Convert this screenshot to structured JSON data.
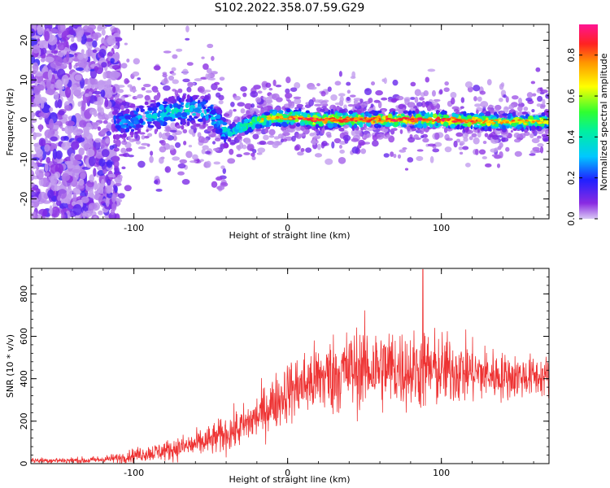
{
  "title": "S102.2022.358.07.59.G29",
  "colors": {
    "snr_line": "#ee3333",
    "axis": "#000000"
  },
  "chart_data": [
    {
      "type": "heatmap",
      "name": "spectrogram",
      "xlabel": "Height of straight line (km)",
      "ylabel": "Frequency (Hz)",
      "xlim": [
        -167,
        170
      ],
      "ylim": [
        -25,
        24
      ],
      "xticks": [
        -100,
        0,
        100
      ],
      "yticks": [
        -20,
        -10,
        0,
        10,
        20
      ],
      "colorbar": {
        "label": "Normalized spectral amplitude",
        "range": [
          0.0,
          0.95
        ],
        "ticks": [
          0.0,
          0.2,
          0.4,
          0.6,
          0.8
        ],
        "colormap": "rainbow (purple-blue-cyan-green-yellow-orange-red-pink)"
      },
      "ridge": [
        {
          "x": -110,
          "y": -1,
          "amp": 0.25
        },
        {
          "x": -95,
          "y": 0.5,
          "amp": 0.3
        },
        {
          "x": -80,
          "y": 1.5,
          "amp": 0.35
        },
        {
          "x": -65,
          "y": 2.5,
          "amp": 0.35
        },
        {
          "x": -50,
          "y": 2.0,
          "amp": 0.3
        },
        {
          "x": -40,
          "y": -3.5,
          "amp": 0.35
        },
        {
          "x": -30,
          "y": -2.0,
          "amp": 0.45
        },
        {
          "x": -20,
          "y": -0.5,
          "amp": 0.55
        },
        {
          "x": -10,
          "y": 0.5,
          "amp": 0.6
        },
        {
          "x": 0,
          "y": 0.5,
          "amp": 0.7
        },
        {
          "x": 20,
          "y": 0,
          "amp": 0.75
        },
        {
          "x": 50,
          "y": 0,
          "amp": 0.7
        },
        {
          "x": 80,
          "y": 0,
          "amp": 0.75
        },
        {
          "x": 100,
          "y": 0,
          "amp": 0.75
        },
        {
          "x": 130,
          "y": -0.5,
          "amp": 0.65
        },
        {
          "x": 160,
          "y": -0.5,
          "amp": 0.6
        },
        {
          "x": 170,
          "y": -0.5,
          "amp": 0.55
        }
      ]
    },
    {
      "type": "line",
      "name": "snr",
      "xlabel": "Height of straight line (km)",
      "ylabel": "SNR (10 * v/v)",
      "xlim": [
        -167,
        170
      ],
      "ylim": [
        0,
        920
      ],
      "xticks": [
        -100,
        0,
        100
      ],
      "yticks": [
        0,
        200,
        400,
        600,
        800
      ],
      "envelope": {
        "x": [
          -167,
          -130,
          -110,
          -100,
          -90,
          -80,
          -70,
          -60,
          -50,
          -40,
          -30,
          -20,
          -10,
          0,
          10,
          20,
          30,
          40,
          50,
          60,
          70,
          80,
          90,
          100,
          110,
          120,
          130,
          140,
          150,
          160,
          170
        ],
        "mean": [
          15,
          15,
          25,
          40,
          50,
          60,
          75,
          90,
          110,
          140,
          170,
          220,
          280,
          340,
          370,
          400,
          420,
          440,
          450,
          450,
          450,
          440,
          440,
          440,
          440,
          430,
          420,
          410,
          410,
          410,
          410
        ],
        "spread": [
          8,
          10,
          15,
          20,
          25,
          30,
          35,
          40,
          45,
          55,
          60,
          70,
          80,
          90,
          100,
          110,
          120,
          120,
          125,
          125,
          120,
          115,
          120,
          110,
          100,
          90,
          80,
          70,
          65,
          60,
          60
        ]
      },
      "peak": {
        "x": 88,
        "y": 915
      }
    }
  ]
}
